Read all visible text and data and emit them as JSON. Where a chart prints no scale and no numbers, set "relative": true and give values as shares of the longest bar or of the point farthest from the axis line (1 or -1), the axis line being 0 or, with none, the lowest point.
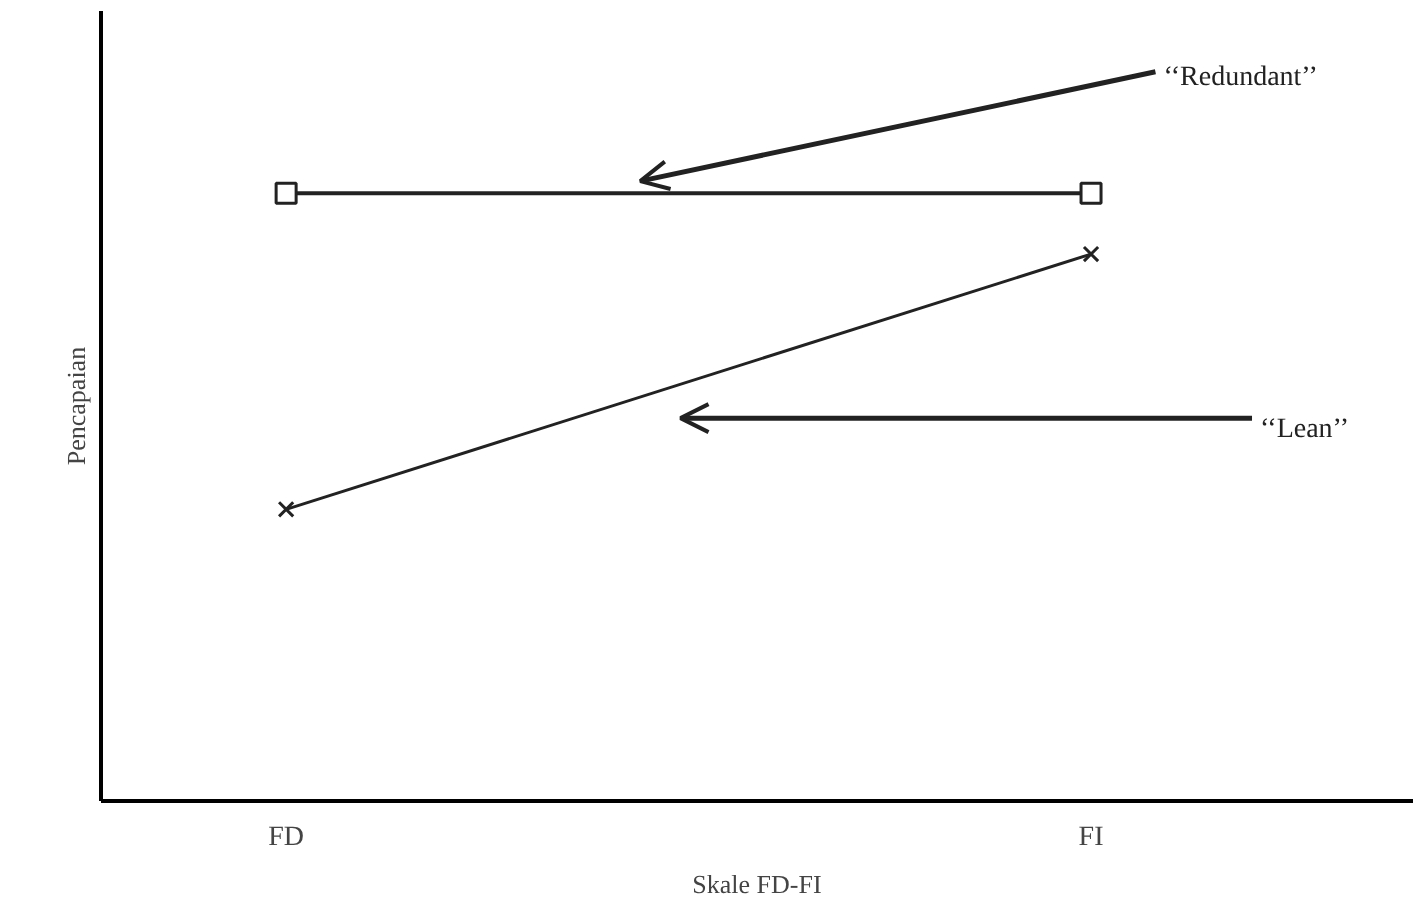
{
  "chart_data": {
    "type": "line",
    "relative": true,
    "xlabel": "Skale FD-FI",
    "ylabel": "Pencapaian",
    "categories": [
      "FD",
      "FI"
    ],
    "legend": false,
    "grid": false,
    "series": [
      {
        "name": "‘‘Redundant’’",
        "color": "#222222",
        "values": [
          1,
          1
        ],
        "marker": "square"
      },
      {
        "name": "‘‘Lean’’",
        "color": "#222222",
        "values": [
          0.48,
          0.9
        ],
        "marker": "cross"
      }
    ]
  }
}
